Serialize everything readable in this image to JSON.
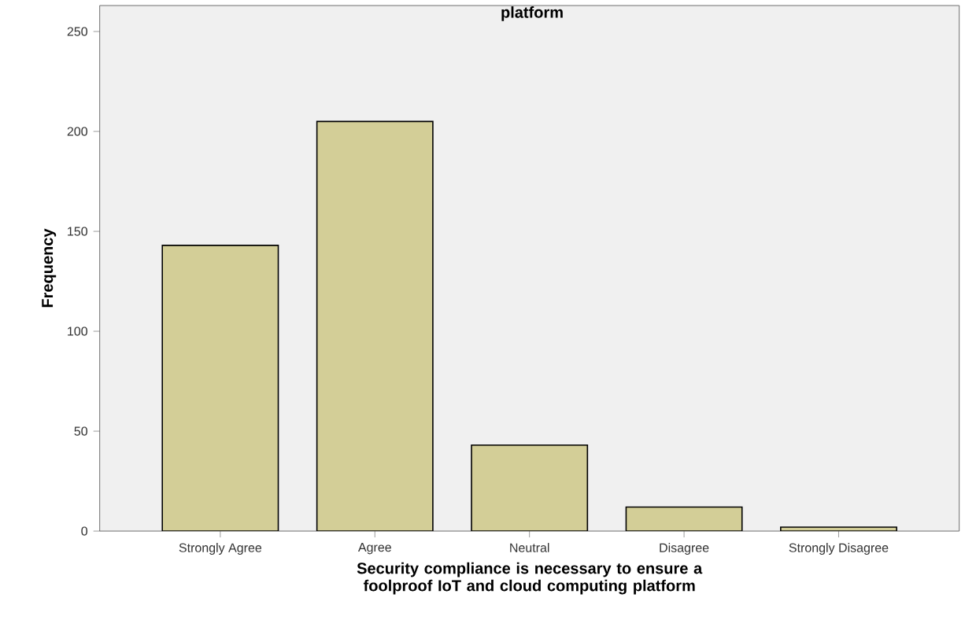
{
  "chart_data": {
    "type": "bar",
    "title": "platform",
    "xlabel": "Security compliance is necessary to ensure a foolproof IoT and cloud computing platform",
    "ylabel": "Frequency",
    "categories": [
      "Strongly Agree",
      "Agree",
      "Neutral",
      "Disagree",
      "Strongly Disagree"
    ],
    "values": [
      143,
      205,
      43,
      12,
      2
    ],
    "color": "#d3ce97",
    "ylim": [
      0,
      263
    ],
    "yticks": [
      0,
      50,
      100,
      150,
      200,
      250
    ],
    "grid": false
  }
}
